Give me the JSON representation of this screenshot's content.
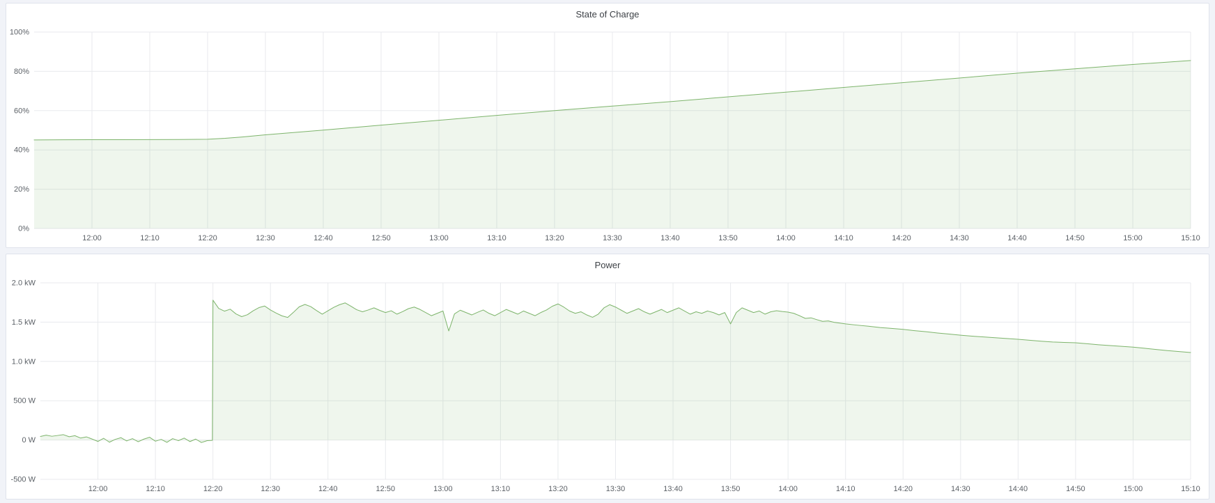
{
  "panels": [
    {
      "title": "State of Charge"
    },
    {
      "title": "Power"
    }
  ],
  "chart_data": [
    {
      "type": "area",
      "name": "state-of-charge",
      "title": "State of Charge",
      "xlabel": "",
      "ylabel": "",
      "x_range": [
        0,
        200
      ],
      "y_range": [
        0,
        100
      ],
      "grid": true,
      "legend_position": "none",
      "grid_color": "#e8eaed",
      "tick_color": "#5c6167",
      "x_ticks": [
        {
          "t": 10,
          "label": "12:00"
        },
        {
          "t": 20,
          "label": "12:10"
        },
        {
          "t": 30,
          "label": "12:20"
        },
        {
          "t": 40,
          "label": "12:30"
        },
        {
          "t": 50,
          "label": "12:40"
        },
        {
          "t": 60,
          "label": "12:50"
        },
        {
          "t": 70,
          "label": "13:00"
        },
        {
          "t": 80,
          "label": "13:10"
        },
        {
          "t": 90,
          "label": "13:20"
        },
        {
          "t": 100,
          "label": "13:30"
        },
        {
          "t": 110,
          "label": "13:40"
        },
        {
          "t": 120,
          "label": "13:50"
        },
        {
          "t": 130,
          "label": "14:00"
        },
        {
          "t": 140,
          "label": "14:10"
        },
        {
          "t": 150,
          "label": "14:20"
        },
        {
          "t": 160,
          "label": "14:30"
        },
        {
          "t": 170,
          "label": "14:40"
        },
        {
          "t": 180,
          "label": "14:50"
        },
        {
          "t": 190,
          "label": "15:00"
        },
        {
          "t": 200,
          "label": "15:10"
        }
      ],
      "y_ticks": [
        {
          "value": 0,
          "label": "0%"
        },
        {
          "value": 20,
          "label": "20%"
        },
        {
          "value": 40,
          "label": "40%"
        },
        {
          "value": 60,
          "label": "60%"
        },
        {
          "value": 80,
          "label": "80%"
        },
        {
          "value": 100,
          "label": "100%"
        }
      ],
      "series": [
        {
          "name": "State of Charge",
          "color": "#7db46b",
          "fill": "rgba(125,180,107,0.12)",
          "fill_baseline": 0,
          "points": [
            [
              0,
              45.1
            ],
            [
              5,
              45.15
            ],
            [
              10,
              45.2
            ],
            [
              15,
              45.2
            ],
            [
              20,
              45.25
            ],
            [
              25,
              45.3
            ],
            [
              30,
              45.45
            ],
            [
              33,
              45.9
            ],
            [
              36,
              46.6
            ],
            [
              40,
              47.7
            ],
            [
              50,
              50.1
            ],
            [
              60,
              52.6
            ],
            [
              70,
              55.1
            ],
            [
              80,
              57.6
            ],
            [
              90,
              60.0
            ],
            [
              100,
              62.3
            ],
            [
              110,
              64.6
            ],
            [
              120,
              67.0
            ],
            [
              130,
              69.4
            ],
            [
              140,
              71.8
            ],
            [
              150,
              74.2
            ],
            [
              160,
              76.6
            ],
            [
              170,
              79.1
            ],
            [
              180,
              81.3
            ],
            [
              190,
              83.5
            ],
            [
              200,
              85.5
            ]
          ]
        }
      ]
    },
    {
      "type": "area",
      "name": "power",
      "title": "Power",
      "xlabel": "",
      "ylabel": "",
      "x_range": [
        0,
        200
      ],
      "y_range": [
        -500,
        2000
      ],
      "grid": true,
      "legend_position": "none",
      "grid_color": "#e8eaed",
      "tick_color": "#5c6167",
      "x_ticks": [
        {
          "t": 10,
          "label": "12:00"
        },
        {
          "t": 20,
          "label": "12:10"
        },
        {
          "t": 30,
          "label": "12:20"
        },
        {
          "t": 40,
          "label": "12:30"
        },
        {
          "t": 50,
          "label": "12:40"
        },
        {
          "t": 60,
          "label": "12:50"
        },
        {
          "t": 70,
          "label": "13:00"
        },
        {
          "t": 80,
          "label": "13:10"
        },
        {
          "t": 90,
          "label": "13:20"
        },
        {
          "t": 100,
          "label": "13:30"
        },
        {
          "t": 110,
          "label": "13:40"
        },
        {
          "t": 120,
          "label": "13:50"
        },
        {
          "t": 130,
          "label": "14:00"
        },
        {
          "t": 140,
          "label": "14:10"
        },
        {
          "t": 150,
          "label": "14:20"
        },
        {
          "t": 160,
          "label": "14:30"
        },
        {
          "t": 170,
          "label": "14:40"
        },
        {
          "t": 180,
          "label": "14:50"
        },
        {
          "t": 190,
          "label": "15:00"
        },
        {
          "t": 200,
          "label": "15:10"
        }
      ],
      "y_ticks": [
        {
          "value": -500,
          "label": "-500 W"
        },
        {
          "value": 0,
          "label": "0 W"
        },
        {
          "value": 500,
          "label": "500 W"
        },
        {
          "value": 1000,
          "label": "1.0 kW"
        },
        {
          "value": 1500,
          "label": "1.5 kW"
        },
        {
          "value": 2000,
          "label": "2.0 kW"
        }
      ],
      "series": [
        {
          "name": "Power",
          "color": "#7db46b",
          "fill": "rgba(125,180,107,0.12)",
          "fill_baseline": 0,
          "points": [
            [
              0,
              45
            ],
            [
              1,
              62
            ],
            [
              2,
              48
            ],
            [
              3,
              58
            ],
            [
              4,
              68
            ],
            [
              5,
              42
            ],
            [
              6,
              55
            ],
            [
              7,
              25
            ],
            [
              8,
              40
            ],
            [
              9,
              12
            ],
            [
              10,
              -18
            ],
            [
              11,
              22
            ],
            [
              12,
              -28
            ],
            [
              13,
              8
            ],
            [
              14,
              30
            ],
            [
              15,
              -12
            ],
            [
              16,
              18
            ],
            [
              17,
              -22
            ],
            [
              18,
              12
            ],
            [
              19,
              35
            ],
            [
              20,
              -15
            ],
            [
              21,
              8
            ],
            [
              22,
              -30
            ],
            [
              23,
              18
            ],
            [
              24,
              -8
            ],
            [
              25,
              25
            ],
            [
              26,
              -20
            ],
            [
              27,
              12
            ],
            [
              28,
              -32
            ],
            [
              29,
              -8
            ],
            [
              29.9,
              -5
            ],
            [
              30,
              1780
            ],
            [
              31,
              1675
            ],
            [
              32,
              1640
            ],
            [
              33,
              1665
            ],
            [
              34,
              1605
            ],
            [
              35,
              1570
            ],
            [
              36,
              1595
            ],
            [
              37,
              1645
            ],
            [
              38,
              1685
            ],
            [
              39,
              1705
            ],
            [
              40,
              1655
            ],
            [
              41,
              1615
            ],
            [
              42,
              1580
            ],
            [
              43,
              1560
            ],
            [
              44,
              1625
            ],
            [
              45,
              1695
            ],
            [
              46,
              1725
            ],
            [
              47,
              1698
            ],
            [
              48,
              1648
            ],
            [
              49,
              1602
            ],
            [
              50,
              1645
            ],
            [
              51,
              1688
            ],
            [
              52,
              1722
            ],
            [
              53,
              1745
            ],
            [
              54,
              1702
            ],
            [
              55,
              1658
            ],
            [
              56,
              1632
            ],
            [
              57,
              1655
            ],
            [
              58,
              1682
            ],
            [
              59,
              1650
            ],
            [
              60,
              1622
            ],
            [
              61,
              1645
            ],
            [
              62,
              1602
            ],
            [
              63,
              1635
            ],
            [
              64,
              1672
            ],
            [
              65,
              1692
            ],
            [
              66,
              1662
            ],
            [
              67,
              1622
            ],
            [
              68,
              1582
            ],
            [
              69,
              1612
            ],
            [
              70,
              1642
            ],
            [
              71,
              1388
            ],
            [
              72,
              1605
            ],
            [
              73,
              1652
            ],
            [
              74,
              1622
            ],
            [
              75,
              1592
            ],
            [
              76,
              1625
            ],
            [
              77,
              1655
            ],
            [
              78,
              1612
            ],
            [
              79,
              1582
            ],
            [
              80,
              1622
            ],
            [
              81,
              1662
            ],
            [
              82,
              1632
            ],
            [
              83,
              1602
            ],
            [
              84,
              1642
            ],
            [
              85,
              1612
            ],
            [
              86,
              1582
            ],
            [
              87,
              1622
            ],
            [
              88,
              1655
            ],
            [
              89,
              1702
            ],
            [
              90,
              1732
            ],
            [
              91,
              1692
            ],
            [
              92,
              1642
            ],
            [
              93,
              1612
            ],
            [
              94,
              1632
            ],
            [
              95,
              1592
            ],
            [
              96,
              1562
            ],
            [
              97,
              1602
            ],
            [
              98,
              1682
            ],
            [
              99,
              1722
            ],
            [
              100,
              1692
            ],
            [
              101,
              1652
            ],
            [
              102,
              1612
            ],
            [
              103,
              1642
            ],
            [
              104,
              1672
            ],
            [
              105,
              1632
            ],
            [
              106,
              1602
            ],
            [
              107,
              1632
            ],
            [
              108,
              1662
            ],
            [
              109,
              1622
            ],
            [
              110,
              1652
            ],
            [
              111,
              1682
            ],
            [
              112,
              1642
            ],
            [
              113,
              1602
            ],
            [
              114,
              1632
            ],
            [
              115,
              1612
            ],
            [
              116,
              1642
            ],
            [
              117,
              1622
            ],
            [
              118,
              1592
            ],
            [
              119,
              1622
            ],
            [
              120,
              1478
            ],
            [
              121,
              1622
            ],
            [
              122,
              1682
            ],
            [
              123,
              1652
            ],
            [
              124,
              1622
            ],
            [
              125,
              1642
            ],
            [
              126,
              1602
            ],
            [
              127,
              1632
            ],
            [
              128,
              1645
            ],
            [
              129,
              1635
            ],
            [
              130,
              1628
            ],
            [
              131,
              1612
            ],
            [
              132,
              1582
            ],
            [
              133,
              1548
            ],
            [
              134,
              1555
            ],
            [
              135,
              1532
            ],
            [
              136,
              1510
            ],
            [
              137,
              1516
            ],
            [
              138,
              1498
            ],
            [
              139,
              1488
            ],
            [
              140,
              1478
            ],
            [
              142,
              1462
            ],
            [
              144,
              1448
            ],
            [
              146,
              1432
            ],
            [
              148,
              1420
            ],
            [
              150,
              1408
            ],
            [
              152,
              1392
            ],
            [
              154,
              1378
            ],
            [
              156,
              1362
            ],
            [
              158,
              1348
            ],
            [
              160,
              1334
            ],
            [
              162,
              1322
            ],
            [
              164,
              1312
            ],
            [
              166,
              1302
            ],
            [
              168,
              1292
            ],
            [
              170,
              1282
            ],
            [
              172,
              1270
            ],
            [
              174,
              1258
            ],
            [
              176,
              1248
            ],
            [
              178,
              1242
            ],
            [
              180,
              1238
            ],
            [
              182,
              1225
            ],
            [
              184,
              1212
            ],
            [
              186,
              1202
            ],
            [
              188,
              1192
            ],
            [
              190,
              1182
            ],
            [
              192,
              1168
            ],
            [
              194,
              1152
            ],
            [
              196,
              1138
            ],
            [
              198,
              1126
            ],
            [
              200,
              1114
            ]
          ]
        }
      ]
    }
  ]
}
